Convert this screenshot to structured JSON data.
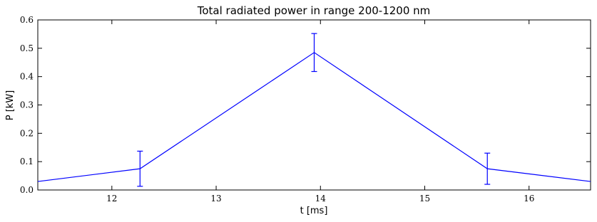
{
  "chart_data": {
    "type": "line",
    "title": "Total radiated power in range 200-1200 nm",
    "x_label": "t [ms]",
    "y_label": "P [kW]",
    "x": [
      11.29,
      12.27,
      13.94,
      15.6,
      16.59
    ],
    "values": [
      0.03,
      0.075,
      0.485,
      0.075,
      0.03
    ],
    "errors": [
      null,
      0.062,
      0.067,
      0.055,
      null
    ],
    "color": "#0000ff",
    "xlim": [
      11.29,
      16.59
    ],
    "xticks": [
      12,
      13,
      14,
      15,
      16
    ],
    "ylim": [
      0,
      0.6
    ],
    "yticks": [
      {
        "value": 0,
        "label": "0.0"
      },
      0.1,
      0.2,
      0.3,
      0.4,
      0.5,
      0.6
    ],
    "grid": false
  }
}
